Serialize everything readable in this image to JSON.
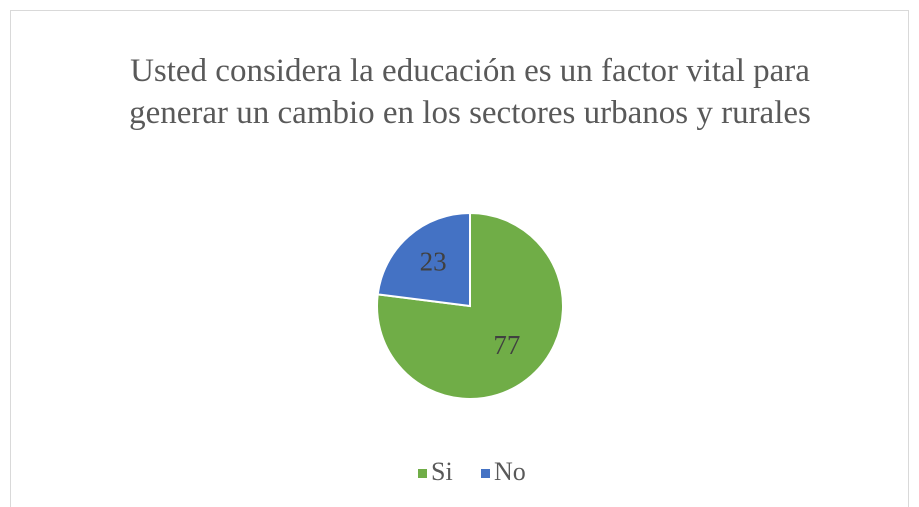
{
  "chart_data": {
    "type": "pie",
    "title": "Usted considera la educación es un factor vital para generar un cambio en los sectores urbanos y rurales",
    "categories": [
      "Si",
      "No"
    ],
    "values": [
      77,
      23
    ],
    "colors": [
      "#70ad47",
      "#4472c4"
    ],
    "legend": "bottom"
  }
}
